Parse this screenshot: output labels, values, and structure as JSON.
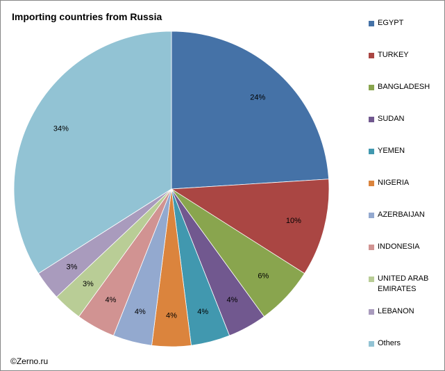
{
  "chart_data": {
    "type": "pie",
    "title": "Importing countries from Russia",
    "categories": [
      "EGYPT",
      "TURKEY",
      "BANGLADESH",
      "SUDAN",
      "YEMEN",
      "NIGERIA",
      "AZERBAIJAN",
      "INDONESIA",
      "UNITED ARAB EMIRATES",
      "LEBANON",
      "Others"
    ],
    "values": [
      24,
      10,
      6,
      4,
      4,
      4,
      4,
      4,
      3,
      3,
      34
    ],
    "labels": [
      "24%",
      "10%",
      "6%",
      "4%",
      "4%",
      "4%",
      "4%",
      "4%",
      "3%",
      "3%",
      "34%"
    ],
    "colors": [
      "#4572A7",
      "#AA4643",
      "#89A54E",
      "#71588F",
      "#4198AF",
      "#DB843D",
      "#93A9CF",
      "#D19392",
      "#B9CD96",
      "#A99BBD",
      "#92C3D4"
    ],
    "legend_position": "right"
  },
  "footer": "©Zerno.ru"
}
